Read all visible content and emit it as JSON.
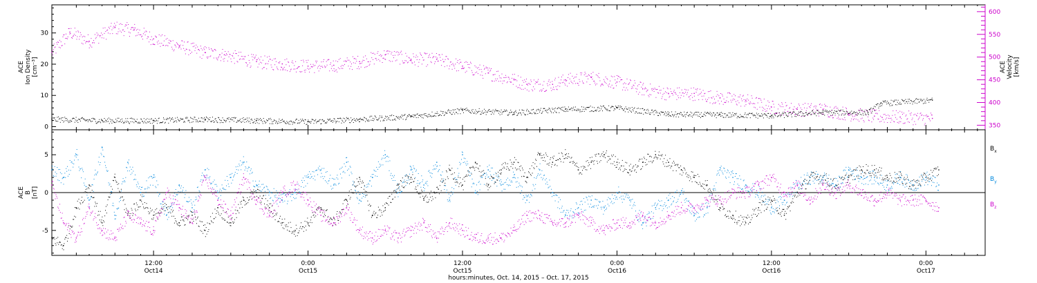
{
  "colors": {
    "black": "#000000",
    "magenta": "#cc00cc",
    "blue": "#0088dd",
    "axis": "#000000"
  },
  "x_axis": {
    "ticks": [
      {
        "t": 12,
        "time": "12:00",
        "day": "Oct14"
      },
      {
        "t": 24,
        "time": "0:00",
        "day": "Oct15"
      },
      {
        "t": 36,
        "time": "12:00",
        "day": "Oct15"
      },
      {
        "t": 48,
        "time": "0:00",
        "day": "Oct16"
      },
      {
        "t": 60,
        "time": "12:00",
        "day": "Oct16"
      },
      {
        "t": 72,
        "time": "0:00",
        "day": "Oct17"
      }
    ],
    "label": "hours:minutes, Oct. 14, 2015 – Oct. 17, 2015"
  },
  "chart_data": [
    {
      "type": "scatter",
      "panel": "top",
      "x_range_hours_since_oct14_0000": [
        4.1,
        76.6
      ],
      "left_axis": {
        "label_lines": [
          "ACE",
          "Ion Density",
          "[cm⁻³]"
        ],
        "ylim": [
          -1,
          39
        ],
        "ticks": [
          0,
          10,
          20,
          30
        ]
      },
      "right_axis": {
        "label_lines": [
          "ACE",
          "Velocity",
          "[km/s]"
        ],
        "ylim": [
          340,
          615
        ],
        "ticks": [
          350,
          400,
          450,
          500,
          550,
          600
        ]
      },
      "series": [
        {
          "name": "Ion Density",
          "axis": "left",
          "color": "#000000",
          "x": [
            4.1,
            8,
            12,
            16,
            20,
            24,
            28,
            32,
            36,
            40,
            44,
            48,
            52,
            56,
            60,
            64,
            67.5,
            68.5,
            72.5
          ],
          "y": [
            2.4,
            2.0,
            2.0,
            2.4,
            2.0,
            1.6,
            2.4,
            3.3,
            5.2,
            4.5,
            5.6,
            6.0,
            4.0,
            3.8,
            3.6,
            4.6,
            4.6,
            7.5,
            8.5
          ]
        },
        {
          "name": "Velocity",
          "axis": "right",
          "color": "#cc00cc",
          "x": [
            4.1,
            5.5,
            7,
            9,
            10.5,
            12,
            14,
            16,
            17.5,
            20,
            22,
            24,
            26,
            28,
            30,
            32,
            34,
            36,
            38,
            40,
            41,
            43,
            44,
            46,
            48,
            50,
            52,
            54,
            56,
            58,
            60,
            62,
            64,
            66,
            68,
            70,
            72.5
          ],
          "y": [
            510,
            555,
            535,
            565,
            560,
            540,
            525,
            510,
            505,
            490,
            485,
            480,
            482,
            490,
            505,
            495,
            495,
            480,
            465,
            450,
            440,
            440,
            450,
            455,
            445,
            430,
            420,
            420,
            410,
            405,
            390,
            385,
            385,
            375,
            370,
            368,
            365
          ]
        }
      ]
    },
    {
      "type": "scatter",
      "panel": "bottom",
      "x_range_hours_since_oct14_0000": [
        4.1,
        76.6
      ],
      "left_axis": {
        "label_lines": [
          "ACE",
          "B",
          "[nT]"
        ],
        "ylim": [
          -8.3,
          8.3
        ],
        "ticks": [
          -5,
          0,
          5
        ]
      },
      "legend": {
        "position": "right",
        "entries": [
          {
            "label": "B",
            "sub": "x",
            "color": "#000000"
          },
          {
            "label": "B",
            "sub": "y",
            "color": "#0088dd"
          },
          {
            "label": "B",
            "sub": "z",
            "color": "#cc00cc"
          }
        ]
      },
      "series": [
        {
          "name": "Bx",
          "color": "#000000",
          "x": [
            4.1,
            5,
            6,
            7,
            8,
            9,
            10,
            11,
            12,
            13,
            14,
            15,
            16,
            17,
            18,
            19,
            20,
            21,
            22,
            23,
            24,
            25,
            26,
            27,
            28,
            29,
            30,
            31,
            32,
            33,
            34,
            35,
            36,
            37,
            38,
            39,
            40,
            41,
            42,
            43,
            44,
            45,
            46,
            47,
            48,
            49,
            50,
            51,
            52,
            53,
            54,
            55,
            56,
            57,
            58,
            59,
            60,
            61,
            62,
            63,
            64,
            65,
            66,
            67,
            68,
            69,
            70,
            71,
            72,
            73
          ],
          "y": [
            -6,
            -7,
            -2,
            1,
            -4,
            2,
            -3,
            -1,
            -3,
            -2,
            -4,
            -3,
            -5,
            -2,
            -4,
            -1,
            0,
            -2,
            -4,
            -5,
            -4,
            -2,
            -4,
            -1,
            2,
            -3,
            -2,
            1,
            2,
            -1,
            0,
            3,
            1,
            4,
            1,
            3,
            4,
            2,
            5,
            4,
            5,
            3,
            4,
            5,
            4,
            3,
            4,
            5,
            4,
            3,
            2,
            1,
            -2,
            -3,
            -4,
            -2,
            -1,
            -3,
            0,
            2,
            2,
            1,
            2,
            3,
            3,
            2,
            2,
            1,
            2,
            3
          ]
        },
        {
          "name": "By",
          "color": "#0088dd",
          "x": [
            4.1,
            5,
            6,
            7,
            8,
            9,
            10,
            11,
            12,
            13,
            14,
            15,
            16,
            17,
            18,
            19,
            20,
            21,
            22,
            23,
            24,
            25,
            26,
            27,
            28,
            29,
            30,
            31,
            32,
            33,
            34,
            35,
            36,
            37,
            38,
            39,
            40,
            41,
            42,
            43,
            44,
            45,
            46,
            47,
            48,
            49,
            50,
            51,
            52,
            53,
            54,
            55,
            56,
            57,
            58,
            59,
            60,
            61,
            62,
            63,
            64,
            65,
            66,
            67,
            68,
            69,
            70,
            71,
            72,
            73
          ],
          "y": [
            3,
            2,
            5,
            -1,
            6,
            -3,
            4,
            0,
            2,
            -3,
            1,
            -2,
            3,
            0,
            2,
            4,
            1,
            0,
            -1,
            0,
            2,
            3,
            1,
            4,
            -1,
            2,
            5,
            0,
            3,
            1,
            4,
            -1,
            5,
            0,
            3,
            1,
            2,
            -1,
            3,
            0,
            -3,
            -2,
            -1,
            -2,
            0,
            -1,
            -4,
            -2,
            -1,
            0,
            -3,
            -2,
            3,
            2,
            1,
            0,
            -2,
            -1,
            1,
            2,
            2,
            1,
            3,
            2,
            2,
            1,
            2,
            1,
            2,
            1
          ]
        },
        {
          "name": "Bz",
          "color": "#cc00cc",
          "x": [
            4.1,
            5,
            6,
            7,
            8,
            9,
            10,
            11,
            12,
            13,
            14,
            15,
            16,
            17,
            18,
            19,
            20,
            21,
            22,
            23,
            24,
            25,
            26,
            27,
            28,
            29,
            30,
            31,
            32,
            33,
            34,
            35,
            36,
            37,
            38,
            39,
            40,
            41,
            42,
            43,
            44,
            45,
            46,
            47,
            48,
            49,
            50,
            51,
            52,
            53,
            54,
            55,
            56,
            57,
            58,
            59,
            60,
            61,
            62,
            63,
            64,
            65,
            66,
            67,
            68,
            69,
            70,
            71,
            72,
            73
          ],
          "y": [
            1,
            -4,
            -6,
            -2,
            -5,
            -6,
            -3,
            -4,
            -5,
            0,
            -2,
            -4,
            2,
            -1,
            -3,
            2,
            -1,
            -3,
            0,
            1,
            -1,
            -3,
            -4,
            -2,
            -5,
            -6,
            -5,
            -6,
            -5,
            -4,
            -6,
            -4,
            -5,
            -6,
            -6,
            -6,
            -5,
            -3,
            -3,
            -4,
            -4,
            -3,
            -4,
            -5,
            -4,
            -4,
            -3,
            -4,
            -3,
            -2,
            -2,
            -1,
            -1,
            0,
            0,
            1,
            2,
            0,
            1,
            -1,
            1,
            0,
            1,
            0,
            -1,
            0,
            -1,
            -1,
            -1,
            -2
          ]
        }
      ]
    }
  ]
}
